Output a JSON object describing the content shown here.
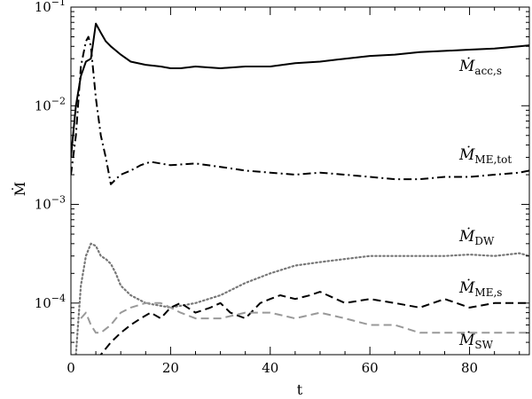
{
  "chart_data": {
    "type": "line",
    "xlabel": "t",
    "ylabel": "Ṁ",
    "xlim": [
      0,
      92
    ],
    "ylim": [
      3e-05,
      0.1
    ],
    "yscale": "log",
    "grid": false,
    "legend": "labels placed at right end of each series",
    "x_ticks": [
      0,
      20,
      40,
      60,
      80
    ],
    "x_tick_labels": [
      "0",
      "20",
      "40",
      "60",
      "80"
    ],
    "y_ticks": [
      0.0001,
      0.001,
      0.01,
      0.1
    ],
    "y_tick_labels": [
      {
        "base": "10",
        "exp": "−4"
      },
      {
        "base": "10",
        "exp": "−3"
      },
      {
        "base": "10",
        "exp": "−2"
      },
      {
        "base": "10",
        "exp": "−1"
      }
    ],
    "series": [
      {
        "name_main": "Ṁ",
        "name_sub": "acc,s",
        "color": "#000000",
        "dash": "solid",
        "x": [
          0,
          1,
          2,
          3,
          4,
          5,
          6,
          7,
          8,
          10,
          12,
          15,
          18,
          20,
          22,
          25,
          30,
          35,
          40,
          45,
          50,
          55,
          60,
          65,
          70,
          75,
          80,
          85,
          90,
          92
        ],
        "y": [
          0.003,
          0.01,
          0.02,
          0.028,
          0.03,
          0.068,
          0.055,
          0.045,
          0.04,
          0.033,
          0.028,
          0.026,
          0.025,
          0.024,
          0.024,
          0.025,
          0.024,
          0.025,
          0.025,
          0.027,
          0.028,
          0.03,
          0.032,
          0.033,
          0.035,
          0.036,
          0.037,
          0.038,
          0.04,
          0.041
        ]
      },
      {
        "name_main": "Ṁ",
        "name_sub": "ME,tot",
        "color": "#000000",
        "dash": "dashdot",
        "x": [
          0,
          1,
          2,
          3,
          3.5,
          4,
          5,
          6,
          7,
          8,
          9,
          10,
          12,
          14,
          16,
          18,
          20,
          25,
          30,
          35,
          40,
          45,
          50,
          55,
          60,
          65,
          70,
          75,
          80,
          85,
          90,
          92
        ],
        "y": [
          0.002,
          0.005,
          0.025,
          0.045,
          0.05,
          0.04,
          0.012,
          0.005,
          0.003,
          0.0016,
          0.0018,
          0.002,
          0.0022,
          0.0025,
          0.0027,
          0.0026,
          0.0025,
          0.0026,
          0.0024,
          0.0022,
          0.0021,
          0.002,
          0.0021,
          0.002,
          0.0019,
          0.0018,
          0.0018,
          0.0019,
          0.0019,
          0.002,
          0.0021,
          0.0022
        ]
      },
      {
        "name_main": "Ṁ",
        "name_sub": "DW",
        "color": "#777777",
        "dash": "dotted",
        "x": [
          1,
          2,
          3,
          4,
          5,
          6,
          7,
          8,
          9,
          10,
          12,
          15,
          20,
          25,
          30,
          35,
          40,
          45,
          50,
          55,
          60,
          65,
          70,
          75,
          80,
          85,
          90,
          92
        ],
        "y": [
          3e-05,
          0.00015,
          0.0003,
          0.0004,
          0.00038,
          0.0003,
          0.00028,
          0.00025,
          0.0002,
          0.00015,
          0.00012,
          0.0001,
          9e-05,
          0.0001,
          0.00012,
          0.00016,
          0.0002,
          0.00024,
          0.00026,
          0.00028,
          0.0003,
          0.0003,
          0.0003,
          0.0003,
          0.00031,
          0.0003,
          0.00032,
          0.0003
        ]
      },
      {
        "name_main": "Ṁ",
        "name_sub": "ME,s",
        "color": "#000000",
        "dash": "dashed",
        "x": [
          5,
          6,
          8,
          10,
          12,
          14,
          16,
          18,
          20,
          22,
          25,
          28,
          30,
          32,
          35,
          38,
          40,
          42,
          45,
          48,
          50,
          55,
          60,
          65,
          70,
          75,
          80,
          85,
          90,
          92
        ],
        "y": [
          2e-05,
          3e-05,
          4e-05,
          5e-05,
          6e-05,
          7e-05,
          8e-05,
          7e-05,
          9e-05,
          0.0001,
          8e-05,
          9e-05,
          0.0001,
          8e-05,
          7e-05,
          0.0001,
          0.00011,
          0.00012,
          0.00011,
          0.00012,
          0.00013,
          0.0001,
          0.00011,
          0.0001,
          9e-05,
          0.00011,
          9e-05,
          0.0001,
          0.0001,
          0.0001
        ]
      },
      {
        "name_main": "Ṁ",
        "name_sub": "SW",
        "color": "#999999",
        "dash": "dashed",
        "x": [
          2,
          3,
          4,
          5,
          6,
          8,
          10,
          12,
          15,
          18,
          20,
          22,
          25,
          28,
          30,
          35,
          40,
          45,
          50,
          55,
          60,
          65,
          70,
          75,
          80,
          85,
          90,
          92
        ],
        "y": [
          7e-05,
          8e-05,
          6e-05,
          5e-05,
          5e-05,
          6e-05,
          8e-05,
          9e-05,
          0.0001,
          0.0001,
          9e-05,
          8e-05,
          7e-05,
          7e-05,
          7e-05,
          8e-05,
          8e-05,
          7e-05,
          8e-05,
          7e-05,
          6e-05,
          6e-05,
          5e-05,
          5e-05,
          5e-05,
          5e-05,
          5e-05,
          5e-05
        ]
      }
    ]
  }
}
